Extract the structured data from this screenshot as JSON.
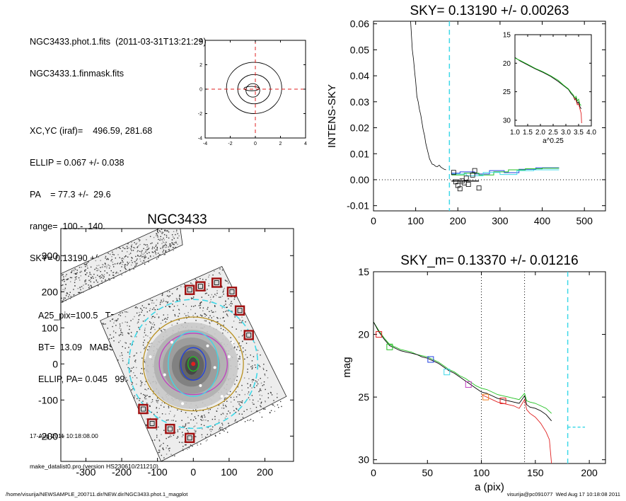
{
  "header": {
    "file_line": "NGC3433.phot.1.fits  (2011-03-31T13:21:29)",
    "mask_line": "NGC3433.1.finmask.fits",
    "params": [
      "XC,YC (iraf)=    496.59, 281.68",
      "ELLIP = 0.067 +/- 0.038",
      "PA    = 77.3 +/-  29.6",
      "range=  100.-  140.",
      "SKY= 0.13190 +/- 0.00263"
    ],
    "derived": [
      "A25_pix=100.5   T= 5.2",
      "BT=  13.09   MABS=-20.07",
      "ELLIP, PA= 0.045   999.0"
    ],
    "date_line": "17-Aug-2011 10:18:08.00",
    "program_line": "make_datalist0.pro (version HS230610/211210)"
  },
  "footer": {
    "path": "/home/visurija/NEWSAMPLE_200711.dir/NEW.dir/NGC3433.phot.1_magplot",
    "user_stamp": "visurija@pc091077  Wed Aug 17 10:18:08 2011"
  },
  "colors": {
    "sky_line": "#3ed8e8",
    "red": "#e02020",
    "green": "#20c020",
    "blue": "#2040e0",
    "magenta": "#c040c0",
    "orange": "#f08020",
    "aperture_box": "#a01010",
    "ellipse_gold": "#b89020"
  },
  "chart_data": [
    {
      "id": "contour",
      "type": "contour",
      "title": "",
      "x_ticks": [
        "-4",
        "-2",
        "0",
        "2",
        "4"
      ],
      "y_ticks": [
        "-4",
        "-2",
        "0",
        "2",
        "4"
      ],
      "xlim": [
        -4,
        4
      ],
      "ylim": [
        -4,
        4
      ],
      "crosshair": {
        "x": 0,
        "y": 0
      },
      "contours": [
        {
          "cx": -0.1,
          "cy": 0.1,
          "rx": 2.2,
          "ry": 2.1
        },
        {
          "cx": -0.1,
          "cy": 0.0,
          "rx": 1.3,
          "ry": 1.2
        },
        {
          "cx": -0.2,
          "cy": -0.1,
          "rx": 0.55,
          "ry": 0.55
        },
        {
          "cx": -0.3,
          "cy": 0.05,
          "rx": 0.6,
          "ry": 0.18
        }
      ]
    },
    {
      "id": "sky",
      "type": "line",
      "title": "SKY= 0.13190 +/- 0.00263",
      "ylabel": "INTENS-SKY",
      "xlabel": "",
      "xlim": [
        0,
        550
      ],
      "ylim": [
        -0.012,
        0.061
      ],
      "x_ticks": [
        "0",
        "100",
        "200",
        "300",
        "400",
        "500"
      ],
      "y_ticks": [
        "0.06",
        "0.05",
        "0.04",
        "0.03",
        "0.02",
        "0.01",
        "0.00",
        "-0.01"
      ],
      "x_tick_values": [
        0,
        100,
        200,
        300,
        400,
        500
      ],
      "y_tick_values": [
        0.06,
        0.05,
        0.04,
        0.03,
        0.02,
        0.01,
        0.0,
        -0.01
      ],
      "sky_marker_x": 180,
      "profile": [
        [
          88,
          0.061
        ],
        [
          92,
          0.05
        ],
        [
          95,
          0.046
        ],
        [
          98,
          0.041
        ],
        [
          100,
          0.038
        ],
        [
          103,
          0.032
        ],
        [
          106,
          0.03
        ],
        [
          109,
          0.027
        ],
        [
          112,
          0.025
        ],
        [
          115,
          0.022
        ],
        [
          118,
          0.019
        ],
        [
          121,
          0.017
        ],
        [
          124,
          0.014
        ],
        [
          127,
          0.012
        ],
        [
          130,
          0.01
        ],
        [
          133,
          0.008
        ],
        [
          136,
          0.007
        ],
        [
          139,
          0.006
        ],
        [
          143,
          0.0058
        ],
        [
          147,
          0.0052
        ],
        [
          151,
          0.005
        ],
        [
          156,
          0.0056
        ],
        [
          160,
          0.0048
        ],
        [
          164,
          0.0044
        ],
        [
          168,
          0.004
        ],
        [
          172,
          0.0038
        ]
      ],
      "steps": [
        {
          "name": "blue",
          "points": [
            [
              185,
              0.0025
            ],
            [
              205,
              0.0025
            ],
            [
              205,
              0.003
            ],
            [
              240,
              0.003
            ],
            [
              240,
              0.0022
            ],
            [
              275,
              0.0022
            ],
            [
              275,
              0.0035
            ],
            [
              310,
              0.0035
            ],
            [
              310,
              0.0027
            ],
            [
              345,
              0.0027
            ],
            [
              345,
              0.004
            ],
            [
              385,
              0.004
            ],
            [
              385,
              0.0046
            ],
            [
              440,
              0.0046
            ]
          ]
        },
        {
          "name": "green",
          "points": [
            [
              185,
              0.0018
            ],
            [
              215,
              0.0018
            ],
            [
              215,
              0.0025
            ],
            [
              250,
              0.0025
            ],
            [
              250,
              0.0018
            ],
            [
              285,
              0.0018
            ],
            [
              285,
              0.003
            ],
            [
              320,
              0.003
            ],
            [
              320,
              0.0038
            ],
            [
              360,
              0.0038
            ],
            [
              360,
              0.0042
            ],
            [
              400,
              0.0042
            ],
            [
              400,
              0.0044
            ],
            [
              440,
              0.0044
            ]
          ]
        },
        {
          "name": "cyan",
          "points": [
            [
              185,
              0.0022
            ],
            [
              220,
              0.0022
            ],
            [
              220,
              0.0015
            ],
            [
              260,
              0.0015
            ],
            [
              260,
              0.0028
            ],
            [
              300,
              0.0028
            ],
            [
              300,
              0.002
            ],
            [
              340,
              0.002
            ],
            [
              340,
              0.0035
            ],
            [
              380,
              0.0035
            ],
            [
              380,
              0.0038
            ],
            [
              440,
              0.0038
            ]
          ]
        }
      ],
      "boxes": [
        [
          190,
          0.0028
        ],
        [
          200,
          -0.0022
        ],
        [
          210,
          -0.0005
        ],
        [
          215,
          -0.0012
        ],
        [
          220,
          0.0006
        ],
        [
          225,
          -0.0018
        ],
        [
          235,
          0.0018
        ],
        [
          240,
          0.0035
        ],
        [
          250,
          -0.0032
        ],
        [
          195,
          -0.0008
        ],
        [
          205,
          -0.0035
        ]
      ],
      "inset": {
        "xlabel": "a^0.25",
        "xlim": [
          1.0,
          4.0
        ],
        "ylim": [
          15,
          31
        ],
        "x_ticks": [
          "1.0",
          "1.5",
          "2.0",
          "2.5",
          "3.0",
          "3.5",
          "4.0"
        ],
        "x_tick_values": [
          1.0,
          1.5,
          2.0,
          2.5,
          3.0,
          3.5,
          4.0
        ],
        "y_ticks": [
          "15",
          "20",
          "25",
          "30"
        ],
        "y_tick_values": [
          15,
          20,
          25,
          30
        ],
        "black": [
          [
            1.0,
            19.0
          ],
          [
            1.2,
            19.6
          ],
          [
            1.5,
            20.3
          ],
          [
            1.8,
            21.0
          ],
          [
            2.1,
            21.6
          ],
          [
            2.4,
            22.3
          ],
          [
            2.7,
            23.2
          ],
          [
            2.9,
            23.9
          ],
          [
            3.1,
            24.6
          ],
          [
            3.2,
            25.3
          ],
          [
            3.3,
            25.8
          ],
          [
            3.35,
            26.4
          ],
          [
            3.4,
            26.1
          ],
          [
            3.45,
            27.0
          ],
          [
            3.5,
            26.8
          ],
          [
            3.55,
            27.6
          ],
          [
            3.6,
            28.0
          ]
        ],
        "green": [
          [
            1.0,
            19.1
          ],
          [
            1.2,
            19.5
          ],
          [
            1.5,
            20.2
          ],
          [
            1.8,
            20.9
          ],
          [
            2.1,
            21.5
          ],
          [
            2.4,
            22.2
          ],
          [
            2.7,
            23.0
          ],
          [
            2.9,
            23.8
          ],
          [
            3.1,
            24.5
          ],
          [
            3.2,
            25.1
          ],
          [
            3.3,
            25.6
          ],
          [
            3.35,
            26.1
          ],
          [
            3.4,
            25.8
          ],
          [
            3.45,
            26.6
          ],
          [
            3.5,
            26.3
          ],
          [
            3.55,
            27.2
          ],
          [
            3.6,
            27.4
          ]
        ],
        "red": [
          [
            3.3,
            26.0
          ],
          [
            3.4,
            26.5
          ],
          [
            3.45,
            27.3
          ],
          [
            3.5,
            27.1
          ],
          [
            3.55,
            28.0
          ],
          [
            3.6,
            28.8
          ],
          [
            3.62,
            30.5
          ]
        ]
      }
    },
    {
      "id": "galaxy",
      "type": "image",
      "title": "NGC3433",
      "xlim": [
        -370,
        280
      ],
      "ylim": [
        -270,
        375
      ],
      "x_ticks": [
        "-300",
        "-200",
        "-100",
        "0",
        "100",
        "200"
      ],
      "x_tick_values": [
        -300,
        -200,
        -100,
        0,
        100,
        200
      ],
      "y_ticks": [
        "300",
        "200",
        "100",
        "0",
        "-100",
        "-200"
      ],
      "y_tick_values": [
        300,
        200,
        100,
        0,
        -100,
        -200
      ],
      "apertures": [
        [
          -10,
          205
        ],
        [
          20,
          215
        ],
        [
          65,
          225
        ],
        [
          108,
          200
        ],
        [
          130,
          148
        ],
        [
          155,
          80
        ],
        [
          -140,
          -125
        ],
        [
          -115,
          -165
        ],
        [
          -65,
          -180
        ],
        [
          -10,
          -205
        ]
      ],
      "sky_radius": 180,
      "ellipses": [
        {
          "name": "gold",
          "rx": 140,
          "ry": 130
        },
        {
          "name": "magenta",
          "rx": 95,
          "ry": 85
        },
        {
          "name": "cyan",
          "rx": 70,
          "ry": 90
        },
        {
          "name": "blue",
          "rx": 35,
          "ry": 45
        },
        {
          "name": "green",
          "rx": 15,
          "ry": 20
        }
      ]
    },
    {
      "id": "magprofile",
      "type": "line",
      "title": "SKY_m=  0.13370 +/- 0.01216",
      "xlabel": "a (pix)",
      "ylabel": "mag",
      "xlim": [
        0,
        215
      ],
      "ylim": [
        15,
        30.3
      ],
      "x_ticks": [
        "0",
        "50",
        "100",
        "150",
        "200"
      ],
      "x_tick_values": [
        0,
        50,
        100,
        150,
        200
      ],
      "y_ticks": [
        "15",
        "20",
        "25",
        "30"
      ],
      "y_tick_values": [
        15,
        20,
        25,
        30
      ],
      "range_lines": [
        100,
        140
      ],
      "sky_marker_x": 180,
      "sky_level_mag": 27.4,
      "black": [
        [
          0,
          19.0
        ],
        [
          5,
          19.8
        ],
        [
          10,
          20.4
        ],
        [
          15,
          20.9
        ],
        [
          20,
          21.1
        ],
        [
          25,
          21.3
        ],
        [
          30,
          21.4
        ],
        [
          35,
          21.5
        ],
        [
          40,
          21.6
        ],
        [
          45,
          21.8
        ],
        [
          50,
          21.9
        ],
        [
          55,
          22.1
        ],
        [
          60,
          22.3
        ],
        [
          65,
          22.6
        ],
        [
          70,
          22.9
        ],
        [
          75,
          23.1
        ],
        [
          80,
          23.4
        ],
        [
          85,
          23.7
        ],
        [
          90,
          24.0
        ],
        [
          95,
          24.3
        ],
        [
          100,
          24.6
        ],
        [
          105,
          24.7
        ],
        [
          110,
          24.9
        ],
        [
          115,
          25.1
        ],
        [
          120,
          25.2
        ],
        [
          125,
          25.3
        ],
        [
          130,
          25.4
        ],
        [
          135,
          25.5
        ],
        [
          140,
          24.9
        ],
        [
          142,
          25.6
        ],
        [
          145,
          25.8
        ],
        [
          150,
          25.9
        ],
        [
          155,
          26.1
        ],
        [
          160,
          26.4
        ],
        [
          165,
          26.9
        ]
      ],
      "green": [
        [
          0,
          19.0
        ],
        [
          5,
          19.7
        ],
        [
          10,
          20.3
        ],
        [
          15,
          20.8
        ],
        [
          20,
          21.0
        ],
        [
          25,
          21.2
        ],
        [
          30,
          21.3
        ],
        [
          35,
          21.4
        ],
        [
          40,
          21.6
        ],
        [
          45,
          21.7
        ],
        [
          50,
          21.8
        ],
        [
          55,
          22.0
        ],
        [
          60,
          22.2
        ],
        [
          65,
          22.5
        ],
        [
          70,
          22.8
        ],
        [
          75,
          23.0
        ],
        [
          80,
          23.3
        ],
        [
          85,
          23.5
        ],
        [
          90,
          23.8
        ],
        [
          95,
          24.1
        ],
        [
          100,
          24.3
        ],
        [
          105,
          24.4
        ],
        [
          110,
          24.6
        ],
        [
          115,
          24.8
        ],
        [
          120,
          24.9
        ],
        [
          125,
          25.0
        ],
        [
          130,
          25.1
        ],
        [
          135,
          25.2
        ],
        [
          140,
          24.7
        ],
        [
          142,
          25.3
        ],
        [
          145,
          25.4
        ],
        [
          150,
          25.5
        ],
        [
          155,
          25.7
        ],
        [
          160,
          25.9
        ],
        [
          165,
          26.3
        ]
      ],
      "red": [
        [
          100,
          24.8
        ],
        [
          105,
          25.0
        ],
        [
          110,
          25.2
        ],
        [
          115,
          25.4
        ],
        [
          120,
          25.5
        ],
        [
          125,
          25.6
        ],
        [
          130,
          25.7
        ],
        [
          135,
          25.9
        ],
        [
          140,
          25.2
        ],
        [
          142,
          26.0
        ],
        [
          145,
          26.3
        ],
        [
          150,
          26.6
        ],
        [
          155,
          27.1
        ],
        [
          160,
          27.8
        ],
        [
          163,
          28.4
        ],
        [
          165,
          30.3
        ]
      ],
      "boxes": [
        {
          "x": 5,
          "y": 20.0,
          "color": "red"
        },
        {
          "x": 15,
          "y": 21.0,
          "color": "green"
        },
        {
          "x": 53,
          "y": 22.0,
          "color": "blue"
        },
        {
          "x": 68,
          "y": 23.0,
          "color": "cyan"
        },
        {
          "x": 88,
          "y": 24.0,
          "color": "magenta"
        },
        {
          "x": 104,
          "y": 25.0,
          "color": "orange"
        },
        {
          "x": 120,
          "y": 25.3,
          "color": "red"
        }
      ]
    }
  ]
}
